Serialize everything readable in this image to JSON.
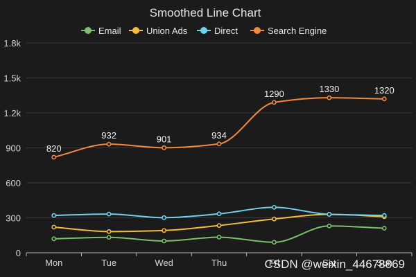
{
  "chart_data": {
    "type": "line",
    "title": "Smoothed Line Chart",
    "smooth": true,
    "categories": [
      "Mon",
      "Tue",
      "Wed",
      "Thu",
      "Fri",
      "Sat",
      "Sun"
    ],
    "ylim": [
      0,
      1800
    ],
    "yticks": [
      0,
      300,
      600,
      900,
      1200,
      1500,
      1800
    ],
    "ytick_labels": [
      "0",
      "300",
      "600",
      "900",
      "1.2k",
      "1.5k",
      "1.8k"
    ],
    "grid": true,
    "legend_position": "top-center",
    "series": [
      {
        "name": "Email",
        "color": "#7dbf6e",
        "values": [
          120,
          132,
          101,
          134,
          90,
          230,
          210
        ]
      },
      {
        "name": "Union Ads",
        "color": "#f5bd38",
        "values": [
          220,
          182,
          191,
          234,
          290,
          330,
          310
        ]
      },
      {
        "name": "Direct",
        "color": "#6fd3ee",
        "values": [
          320,
          332,
          301,
          334,
          390,
          330,
          320
        ]
      },
      {
        "name": "Search Engine",
        "color": "#f28a3c",
        "values": [
          820,
          932,
          901,
          934,
          1290,
          1330,
          1320
        ],
        "show_labels": true
      }
    ]
  },
  "watermark": "CSDN @weixin_44678869"
}
